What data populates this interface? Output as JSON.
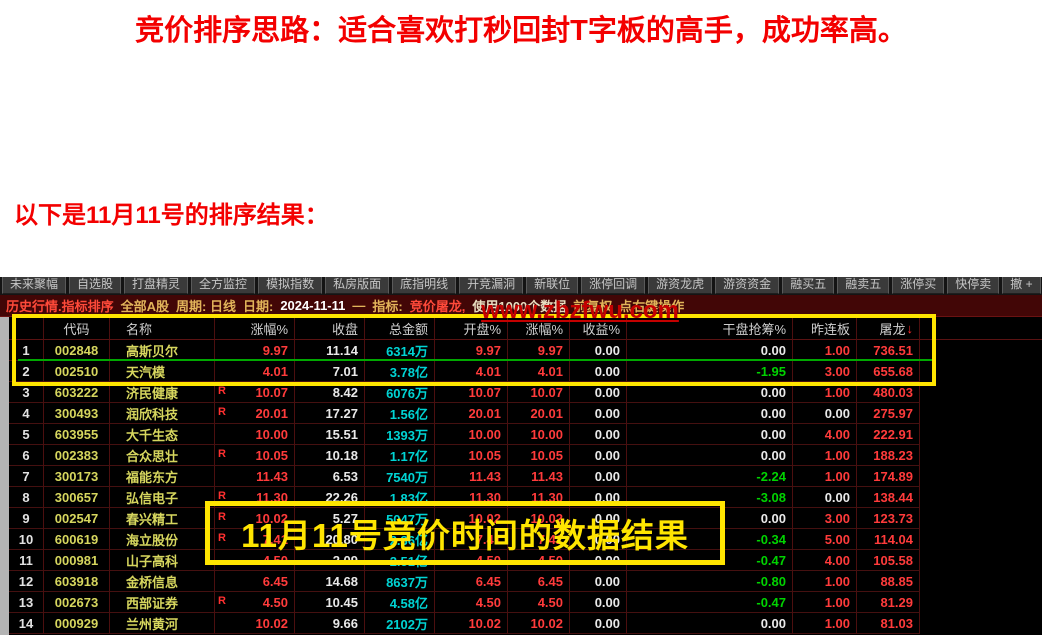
{
  "page": {
    "title": "竞价排序思路：适合喜欢打秒回封T字板的高手，成功率高。",
    "subtitle": "以下是11月11号的排序结果："
  },
  "watermark": "www.zbzfwu.com",
  "overlay": {
    "callout_text": "11月11号竞价时间的数据结果"
  },
  "toolbar": {
    "tabs": [
      "未来聚幅",
      "自选股",
      "打盘精灵",
      "全方监控",
      "模拟指数",
      "私房版面",
      "底指明线",
      "开竞漏洞",
      "新联位",
      "涨停回调",
      "游资龙虎",
      "游资资金",
      "融买五",
      "融卖五",
      "涨停买",
      "快停卖",
      "撤 +"
    ]
  },
  "statusbar": {
    "segments": [
      {
        "text": "历史行情.指标排序",
        "color": "#ff4a3a"
      },
      {
        "text": "全部A股",
        "color": "#e2b45a"
      },
      {
        "text": "周期: 日线",
        "color": "#e2b45a"
      },
      {
        "text": "日期:",
        "color": "#e2b45a"
      },
      {
        "text": "2024-11-11",
        "color": "#ffffff"
      },
      {
        "text": "—",
        "color": "#e2b45a"
      },
      {
        "text": "指标:",
        "color": "#e2b45a"
      },
      {
        "text": "竞价屠龙,",
        "color": "#ff4a3a"
      },
      {
        "text": "使用1000个数据",
        "color": "#e8ddc0"
      },
      {
        "text": "前复权",
        "color": "#e2b45a"
      },
      {
        "text": "点右键操作",
        "color": "#e2b45a"
      }
    ]
  },
  "table": {
    "columns": [
      {
        "label": "",
        "align": "center"
      },
      {
        "label": "代码",
        "align": "center"
      },
      {
        "label": "名称",
        "align": "left"
      },
      {
        "label": "涨幅%",
        "align": "right"
      },
      {
        "label": "收盘",
        "align": "right"
      },
      {
        "label": "总金额",
        "align": "right"
      },
      {
        "label": "开盘%",
        "align": "right"
      },
      {
        "label": "涨幅%",
        "align": "right"
      },
      {
        "label": "收益%",
        "align": "right"
      },
      {
        "label": "干盘抢筹%",
        "align": "right"
      },
      {
        "label": "昨连板",
        "align": "right"
      },
      {
        "label": "屠龙",
        "align": "right",
        "sort_arrow": "↓"
      }
    ],
    "rows": [
      {
        "num": "1",
        "code": "002848",
        "name": "高斯贝尔",
        "r": "",
        "zf1": "9.97",
        "close": "11.14",
        "amount": "6314万",
        "open": "9.97",
        "zf2": "9.97",
        "syl": "0.00",
        "qc": "0.00",
        "zlb": "1.00",
        "tl": "736.51"
      },
      {
        "num": "2",
        "code": "002510",
        "name": "天汽模",
        "r": "",
        "zf1": "4.01",
        "close": "7.01",
        "amount": "3.78亿",
        "open": "4.01",
        "zf2": "4.01",
        "syl": "0.00",
        "qc": "-1.95",
        "zlb": "3.00",
        "tl": "655.68"
      },
      {
        "num": "3",
        "code": "603222",
        "name": "济民健康",
        "r": "R",
        "zf1": "10.07",
        "close": "8.42",
        "amount": "6076万",
        "open": "10.07",
        "zf2": "10.07",
        "syl": "0.00",
        "qc": "0.00",
        "zlb": "1.00",
        "tl": "480.03"
      },
      {
        "num": "4",
        "code": "300493",
        "name": "润欣科技",
        "r": "R",
        "zf1": "20.01",
        "close": "17.27",
        "amount": "1.56亿",
        "open": "20.01",
        "zf2": "20.01",
        "syl": "0.00",
        "qc": "0.00",
        "zlb": "0.00",
        "tl": "275.97"
      },
      {
        "num": "5",
        "code": "603955",
        "name": "大千生态",
        "r": "",
        "zf1": "10.00",
        "close": "15.51",
        "amount": "1393万",
        "open": "10.00",
        "zf2": "10.00",
        "syl": "0.00",
        "qc": "0.00",
        "zlb": "4.00",
        "tl": "222.91"
      },
      {
        "num": "6",
        "code": "002383",
        "name": "合众思壮",
        "r": "R",
        "zf1": "10.05",
        "close": "10.18",
        "amount": "1.17亿",
        "open": "10.05",
        "zf2": "10.05",
        "syl": "0.00",
        "qc": "0.00",
        "zlb": "1.00",
        "tl": "188.23"
      },
      {
        "num": "7",
        "code": "300173",
        "name": "福能东方",
        "r": "",
        "zf1": "11.43",
        "close": "6.53",
        "amount": "7540万",
        "open": "11.43",
        "zf2": "11.43",
        "syl": "0.00",
        "qc": "-2.24",
        "zlb": "1.00",
        "tl": "174.89"
      },
      {
        "num": "8",
        "code": "300657",
        "name": "弘信电子",
        "r": "R",
        "zf1": "11.30",
        "close": "22.26",
        "amount": "1.83亿",
        "open": "11.30",
        "zf2": "11.30",
        "syl": "0.00",
        "qc": "-3.08",
        "zlb": "0.00",
        "tl": "138.44"
      },
      {
        "num": "9",
        "code": "002547",
        "name": "春兴精工",
        "r": "R",
        "zf1": "10.02",
        "close": "5.27",
        "amount": "5047万",
        "open": "10.02",
        "zf2": "10.02",
        "syl": "0.00",
        "qc": "0.00",
        "zlb": "3.00",
        "tl": "123.73"
      },
      {
        "num": "10",
        "code": "600619",
        "name": "海立股份",
        "r": "R",
        "zf1": "7.41",
        "close": "20.80",
        "amount": "2.36亿",
        "open": "7.41",
        "zf2": "7.41",
        "syl": "0.00",
        "qc": "-0.34",
        "zlb": "5.00",
        "tl": "114.04"
      },
      {
        "num": "11",
        "code": "000981",
        "name": "山子高科",
        "r": "",
        "zf1": "4.50",
        "close": "2.09",
        "amount": "2.51亿",
        "open": "4.50",
        "zf2": "4.50",
        "syl": "0.00",
        "qc": "-0.47",
        "zlb": "4.00",
        "tl": "105.58"
      },
      {
        "num": "12",
        "code": "603918",
        "name": "金桥信息",
        "r": "",
        "zf1": "6.45",
        "close": "14.68",
        "amount": "8637万",
        "open": "6.45",
        "zf2": "6.45",
        "syl": "0.00",
        "qc": "-0.80",
        "zlb": "1.00",
        "tl": "88.85"
      },
      {
        "num": "13",
        "code": "002673",
        "name": "西部证券",
        "r": "R",
        "zf1": "4.50",
        "close": "10.45",
        "amount": "4.58亿",
        "open": "4.50",
        "zf2": "4.50",
        "syl": "0.00",
        "qc": "-0.47",
        "zlb": "1.00",
        "tl": "81.29"
      },
      {
        "num": "14",
        "code": "000929",
        "name": "兰州黄河",
        "r": "",
        "zf1": "10.02",
        "close": "9.66",
        "amount": "2102万",
        "open": "10.02",
        "zf2": "10.02",
        "syl": "0.00",
        "qc": "0.00",
        "zlb": "1.00",
        "tl": "81.03"
      }
    ]
  },
  "colors": {
    "up": "#ff3b3b",
    "down": "#00d300",
    "flat": "#e9e9e9",
    "amount": "#00d4d4",
    "symbol": "#d6d65e",
    "row_number": "#e2e2e2",
    "highlight": "#ffe500",
    "selection_line": "#00a800",
    "watermark": "#c40000",
    "title": "#f30000"
  }
}
